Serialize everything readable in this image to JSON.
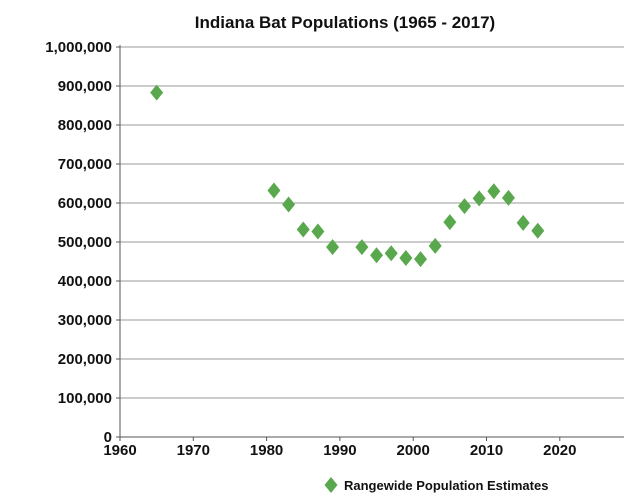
{
  "chart_data": {
    "type": "scatter",
    "title": "Indiana Bat Populations (1965 - 2017)",
    "xlabel": "",
    "ylabel": "",
    "xlim": [
      1960,
      2020
    ],
    "ylim": [
      0,
      1000000
    ],
    "x_ticks": [
      "1960",
      "1970",
      "1980",
      "1990",
      "2000",
      "2010",
      "2020"
    ],
    "y_ticks": [
      "0",
      "100,000",
      "200,000",
      "300,000",
      "400,000",
      "500,000",
      "600,000",
      "700,000",
      "800,000",
      "900,000",
      "1,000,000"
    ],
    "grid": "horizontal",
    "legend_position": "bottom-right",
    "series": [
      {
        "name": "Rangewide Population Estimates",
        "color": "#5aa84e",
        "marker": "diamond",
        "x": [
          1965,
          1981,
          1983,
          1985,
          1987,
          1989,
          1993,
          1995,
          1997,
          1999,
          2001,
          2003,
          2005,
          2007,
          2009,
          2011,
          2013,
          2015,
          2017
        ],
        "y": [
          883000,
          632000,
          596000,
          532000,
          527000,
          487000,
          487000,
          466000,
          471000,
          459000,
          456000,
          490000,
          551000,
          592000,
          612000,
          630000,
          613000,
          549000,
          529000
        ]
      }
    ]
  }
}
